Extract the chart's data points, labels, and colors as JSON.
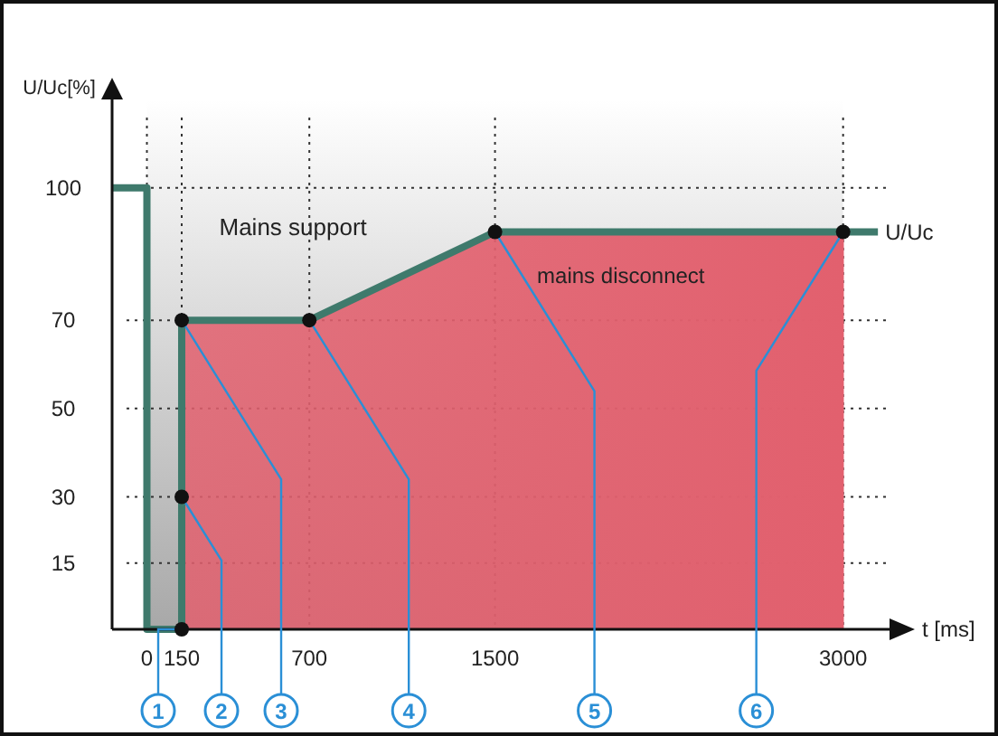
{
  "chart_data": {
    "type": "line",
    "xlabel": "t [ms]",
    "ylabel": "U/Uc[%]",
    "xlim": [
      -150,
      3200
    ],
    "ylim": [
      0,
      120
    ],
    "xticks": [
      0,
      150,
      700,
      1500,
      3000
    ],
    "yticks": [
      15,
      30,
      50,
      70,
      100
    ],
    "grid": true,
    "series": [
      {
        "type": "area",
        "color": "#e2606e",
        "x": [
          150,
          700,
          1500,
          3000
        ],
        "values": [
          70,
          70,
          90,
          90
        ]
      },
      {
        "name": "U/Uc",
        "color": "#3f7a6c",
        "x": [
          -150,
          0,
          0,
          150,
          150,
          700,
          1500,
          3000,
          3150
        ],
        "values": [
          100,
          100,
          0,
          0,
          70,
          70,
          90,
          90,
          90
        ]
      }
    ],
    "bands": [
      {
        "axis": "x",
        "from": 0,
        "to": 3000,
        "label": "Mains support",
        "color": "#a8a8a8"
      }
    ],
    "annotations": [
      "mains disconnect",
      {
        "text": "1",
        "x": 150,
        "y": 0
      },
      {
        "text": "2",
        "x": 150,
        "y": 30
      },
      {
        "text": "3",
        "x": 150,
        "y": 70
      },
      {
        "text": "4",
        "x": 700,
        "y": 70
      },
      {
        "text": "5",
        "x": 1500,
        "y": 90
      },
      {
        "text": "6",
        "x": 3000,
        "y": 90
      }
    ]
  }
}
